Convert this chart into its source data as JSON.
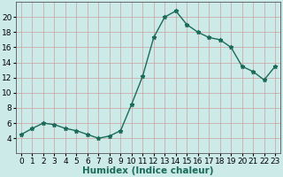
{
  "x": [
    0,
    1,
    2,
    3,
    4,
    5,
    6,
    7,
    8,
    9,
    10,
    11,
    12,
    13,
    14,
    15,
    16,
    17,
    18,
    19,
    20,
    21,
    22,
    23
  ],
  "y": [
    4.5,
    5.3,
    6.0,
    5.8,
    5.3,
    5.0,
    4.5,
    4.0,
    4.3,
    5.0,
    8.5,
    12.2,
    17.3,
    20.0,
    20.8,
    19.0,
    18.0,
    17.3,
    17.0,
    16.0,
    13.5,
    12.8,
    11.7,
    13.5
  ],
  "xlabel": "Humidex (Indice chaleur)",
  "ylim": [
    2,
    22
  ],
  "xlim": [
    -0.5,
    23.5
  ],
  "yticks": [
    4,
    6,
    8,
    10,
    12,
    14,
    16,
    18,
    20
  ],
  "line_color": "#1a6b5a",
  "bg_color": "#cceae8",
  "grid_color": "#b0d8d5",
  "marker": "*",
  "marker_size": 3.5,
  "linewidth": 1.0,
  "tick_fontsize": 6.5,
  "xlabel_fontsize": 7.5
}
